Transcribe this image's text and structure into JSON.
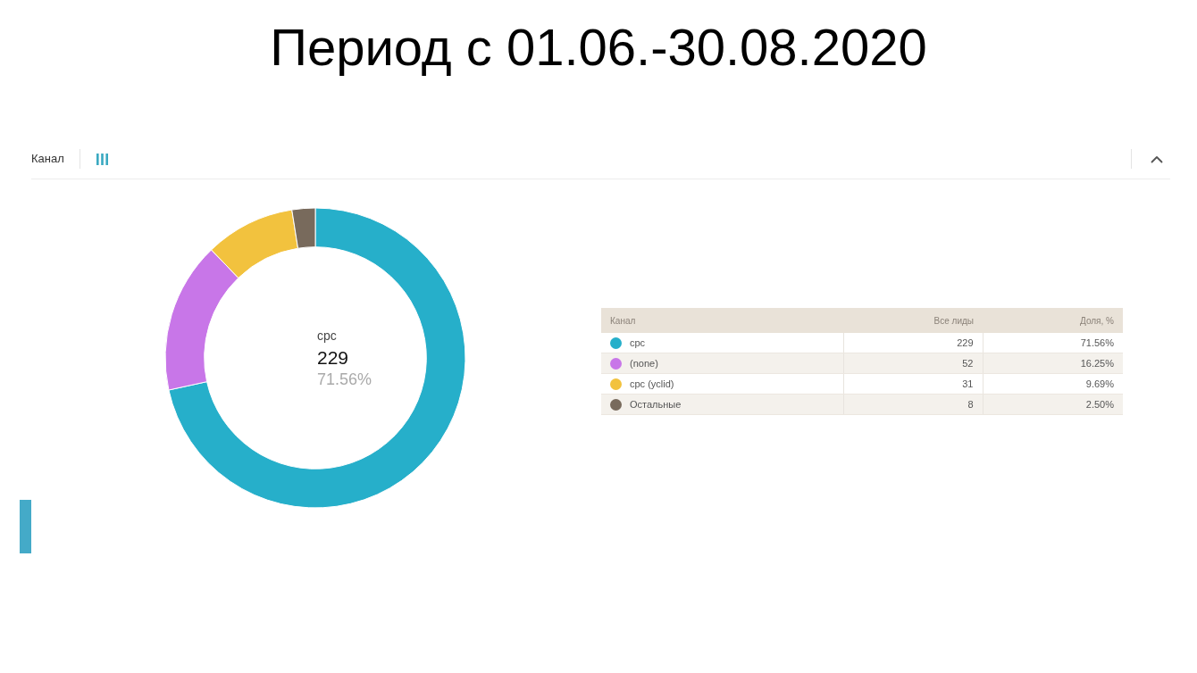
{
  "chart_data": {
    "type": "donut",
    "title": "Период с 01.06.-30.08.2020",
    "legend_title": "Канал",
    "categories": [
      "cpc",
      "(none)",
      "cpc (yclid)",
      "Остальные"
    ],
    "values": [
      229,
      52,
      31,
      8
    ],
    "colors": [
      "#26afca",
      "#c876e8",
      "#f2c23e",
      "#786a5c"
    ],
    "data_labels": true,
    "legend": "right",
    "annotations": [
      "Канал",
      "Все лиды",
      "Доля, %",
      "71.56%",
      "16.25%",
      "9.69%",
      "2.50%",
      "cpc",
      "229",
      "71.56%"
    ]
  }
}
